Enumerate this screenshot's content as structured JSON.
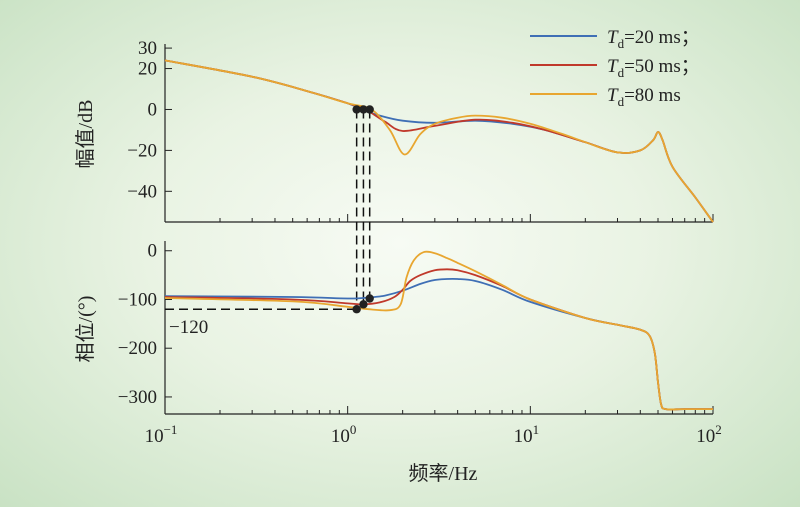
{
  "chart_data": {
    "type": "line",
    "xlabel": "频率/Hz",
    "xscale": "log",
    "xlim": [
      0.1,
      100
    ],
    "x_ticks": [
      {
        "label": "10",
        "exp": "−1"
      },
      {
        "label": "10",
        "exp": "0"
      },
      {
        "label": "10",
        "exp": "1"
      },
      {
        "label": "10",
        "exp": "2"
      }
    ],
    "legend": {
      "position": "top-right",
      "entries": [
        {
          "prefix": "T",
          "sub": "d",
          "text": "=20 ms；",
          "color": "#3f6fb5"
        },
        {
          "prefix": "T",
          "sub": "d",
          "text": "=50 ms；",
          "color": "#c0392b"
        },
        {
          "prefix": "T",
          "sub": "d",
          "text": "=80 ms",
          "color": "#e8a630"
        }
      ]
    },
    "panels": [
      {
        "name": "magnitude",
        "ylabel": "幅值/dB",
        "ylim": [
          -55,
          32
        ],
        "yticks": [
          30,
          20,
          0,
          -20,
          -40
        ],
        "ytick_labels": [
          "30",
          "20",
          "0",
          "−20",
          "−40"
        ],
        "series": [
          {
            "color": "#3f6fb5",
            "x": [
              0.1,
              0.3,
              0.6,
              1,
              1.2,
              1.5,
              2,
              3,
              5,
              8,
              12,
              20,
              30,
              40,
              47,
              50,
              53,
              60,
              80,
              100
            ],
            "y": [
              24,
              16,
              9,
              3,
              0,
              -3,
              -5.5,
              -6.5,
              -5.5,
              -7,
              -10,
              -16,
              -21,
              -20,
              -15,
              -11,
              -15,
              -28,
              -43,
              -55
            ]
          },
          {
            "color": "#c0392b",
            "x": [
              0.1,
              0.3,
              0.6,
              1,
              1.25,
              1.6,
              2,
              3,
              5,
              8,
              12,
              20,
              30,
              40,
              47,
              50,
              53,
              60,
              80,
              100
            ],
            "y": [
              24,
              16,
              9,
              3,
              0,
              -6,
              -10.5,
              -8,
              -5,
              -6.5,
              -10,
              -16,
              -21,
              -20,
              -15,
              -11,
              -15,
              -28,
              -43,
              -55
            ]
          },
          {
            "color": "#e8a630",
            "x": [
              0.1,
              0.3,
              0.6,
              1,
              1.35,
              1.7,
              2.05,
              2.5,
              3,
              4,
              5,
              7,
              10,
              15,
              20,
              30,
              40,
              47,
              50,
              53,
              60,
              80,
              100
            ],
            "y": [
              24,
              16,
              9,
              3,
              0,
              -10,
              -22,
              -12,
              -7,
              -4,
              -3,
              -4,
              -7,
              -12,
              -16,
              -21,
              -20,
              -15,
              -11,
              -15,
              -28,
              -43,
              -55
            ]
          }
        ],
        "markers": [
          {
            "x": 1.12,
            "y": 0
          },
          {
            "x": 1.22,
            "y": 0
          },
          {
            "x": 1.32,
            "y": 0
          }
        ]
      },
      {
        "name": "phase",
        "ylabel": "相位/(°)",
        "ylim": [
          -335,
          20
        ],
        "yticks": [
          0,
          -100,
          -200,
          -300
        ],
        "ytick_labels": [
          "0",
          "−100",
          "−200",
          "−300"
        ],
        "extra_tick_label": "−120",
        "series": [
          {
            "color": "#3f6fb5",
            "x": [
              0.1,
              0.5,
              1,
              1.3,
              1.6,
              2,
              2.5,
              3,
              3.5,
              4,
              5,
              7,
              10,
              20,
              30,
              40,
              45,
              48,
              50,
              52,
              55,
              70,
              100
            ],
            "y": [
              -93,
              -95,
              -98,
              -96,
              -92,
              -82,
              -68,
              -60,
              -58,
              -58,
              -62,
              -80,
              -105,
              -138,
              -152,
              -162,
              -175,
              -210,
              -270,
              -315,
              -325,
              -325,
              -325
            ]
          },
          {
            "color": "#c0392b",
            "x": [
              0.1,
              0.5,
              1,
              1.22,
              1.5,
              1.8,
              2,
              2.2,
              2.5,
              3,
              3.5,
              4,
              5,
              7,
              10,
              20,
              30,
              40,
              45,
              48,
              50,
              52,
              55,
              70,
              100
            ],
            "y": [
              -95,
              -100,
              -108,
              -110,
              -106,
              -95,
              -80,
              -62,
              -50,
              -40,
              -38,
              -40,
              -50,
              -72,
              -100,
              -138,
              -152,
              -162,
              -175,
              -210,
              -270,
              -315,
              -325,
              -325,
              -325
            ]
          },
          {
            "color": "#e8a630",
            "x": [
              0.1,
              0.5,
              1,
              1.3,
              1.7,
              1.95,
              2.1,
              2.3,
              2.6,
              3,
              3.5,
              4,
              5,
              7,
              10,
              20,
              30,
              40,
              45,
              48,
              50,
              52,
              55,
              70,
              100
            ],
            "y": [
              -97,
              -104,
              -115,
              -120,
              -122,
              -110,
              -55,
              -20,
              -3,
              -5,
              -15,
              -25,
              -42,
              -70,
              -100,
              -138,
              -152,
              -162,
              -175,
              -210,
              -270,
              -315,
              -325,
              -325,
              -325
            ]
          }
        ],
        "markers": [
          {
            "x": 1.12,
            "y": -120
          },
          {
            "x": 1.22,
            "y": -110
          },
          {
            "x": 1.32,
            "y": -98
          }
        ]
      }
    ]
  }
}
